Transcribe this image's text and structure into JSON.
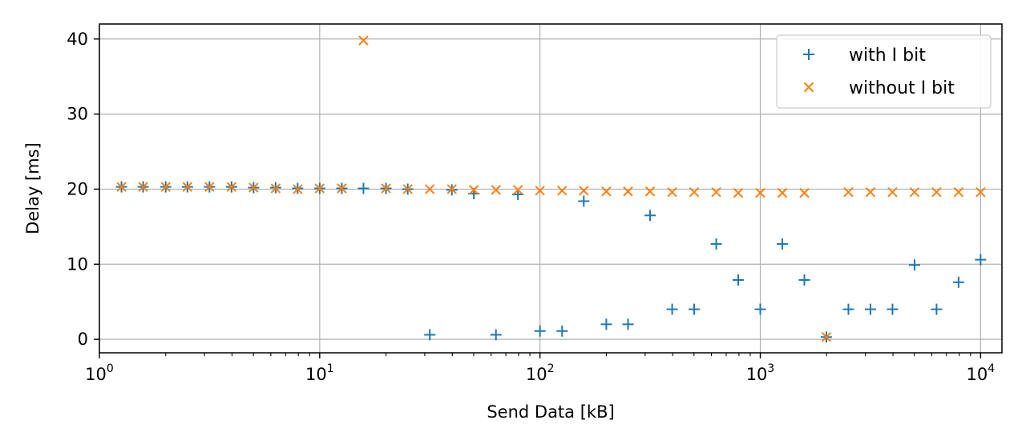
{
  "chart_data": {
    "type": "scatter",
    "xlabel": "Send Data [kB]",
    "ylabel": "Delay [ms]",
    "xscale": "log",
    "xlim": [
      1,
      12500
    ],
    "ylim": [
      -1.8,
      42
    ],
    "xticks": [
      {
        "value": 1,
        "base": "10",
        "exp": "0"
      },
      {
        "value": 10,
        "base": "10",
        "exp": "1"
      },
      {
        "value": 100,
        "base": "10",
        "exp": "2"
      },
      {
        "value": 1000,
        "base": "10",
        "exp": "3"
      },
      {
        "value": 10000,
        "base": "10",
        "exp": "4"
      }
    ],
    "yticks": [
      0,
      10,
      20,
      30,
      40
    ],
    "grid": true,
    "legend_position": "top-right",
    "series": [
      {
        "name": "with I bit",
        "marker": "plus",
        "color": "#1f77b4",
        "points": [
          [
            1.26,
            20.3
          ],
          [
            1.58,
            20.3
          ],
          [
            2.0,
            20.3
          ],
          [
            2.51,
            20.3
          ],
          [
            3.16,
            20.3
          ],
          [
            3.98,
            20.3
          ],
          [
            5.01,
            20.2
          ],
          [
            6.31,
            20.2
          ],
          [
            7.94,
            20.1
          ],
          [
            10.0,
            20.1
          ],
          [
            12.6,
            20.1
          ],
          [
            15.8,
            20.1
          ],
          [
            20.0,
            20.1
          ],
          [
            25.1,
            20.0
          ],
          [
            31.6,
            0.6
          ],
          [
            39.8,
            19.9
          ],
          [
            50.1,
            19.4
          ],
          [
            63.1,
            0.6
          ],
          [
            79.4,
            19.3
          ],
          [
            100,
            1.1
          ],
          [
            126,
            1.1
          ],
          [
            158,
            18.4
          ],
          [
            200,
            2.0
          ],
          [
            251,
            2.0
          ],
          [
            316,
            16.5
          ],
          [
            398,
            4.0
          ],
          [
            501,
            4.0
          ],
          [
            631,
            12.7
          ],
          [
            794,
            7.9
          ],
          [
            1000,
            4.0
          ],
          [
            1259,
            12.7
          ],
          [
            1585,
            7.9
          ],
          [
            1995,
            0.3
          ],
          [
            2512,
            4.0
          ],
          [
            3162,
            4.0
          ],
          [
            3981,
            4.0
          ],
          [
            5012,
            9.9
          ],
          [
            6310,
            4.0
          ],
          [
            7943,
            7.6
          ],
          [
            10000,
            10.6
          ]
        ]
      },
      {
        "name": "without I bit",
        "marker": "x",
        "color": "#ff7f0e",
        "points": [
          [
            1.26,
            20.3
          ],
          [
            1.58,
            20.3
          ],
          [
            2.0,
            20.3
          ],
          [
            2.51,
            20.3
          ],
          [
            3.16,
            20.3
          ],
          [
            3.98,
            20.3
          ],
          [
            5.01,
            20.2
          ],
          [
            6.31,
            20.1
          ],
          [
            7.94,
            20.0
          ],
          [
            10.0,
            20.1
          ],
          [
            12.6,
            20.1
          ],
          [
            15.8,
            39.8
          ],
          [
            20.0,
            20.1
          ],
          [
            25.1,
            20.0
          ],
          [
            31.6,
            20.0
          ],
          [
            39.8,
            20.0
          ],
          [
            50.1,
            19.9
          ],
          [
            63.1,
            19.9
          ],
          [
            79.4,
            19.9
          ],
          [
            100,
            19.8
          ],
          [
            126,
            19.8
          ],
          [
            158,
            19.8
          ],
          [
            200,
            19.7
          ],
          [
            251,
            19.7
          ],
          [
            316,
            19.7
          ],
          [
            398,
            19.6
          ],
          [
            501,
            19.6
          ],
          [
            631,
            19.6
          ],
          [
            794,
            19.5
          ],
          [
            1000,
            19.5
          ],
          [
            1259,
            19.5
          ],
          [
            1585,
            19.5
          ],
          [
            1995,
            0.3
          ],
          [
            2512,
            19.6
          ],
          [
            3162,
            19.6
          ],
          [
            3981,
            19.6
          ],
          [
            5012,
            19.6
          ],
          [
            6310,
            19.6
          ],
          [
            7943,
            19.6
          ],
          [
            10000,
            19.6
          ]
        ]
      }
    ]
  }
}
